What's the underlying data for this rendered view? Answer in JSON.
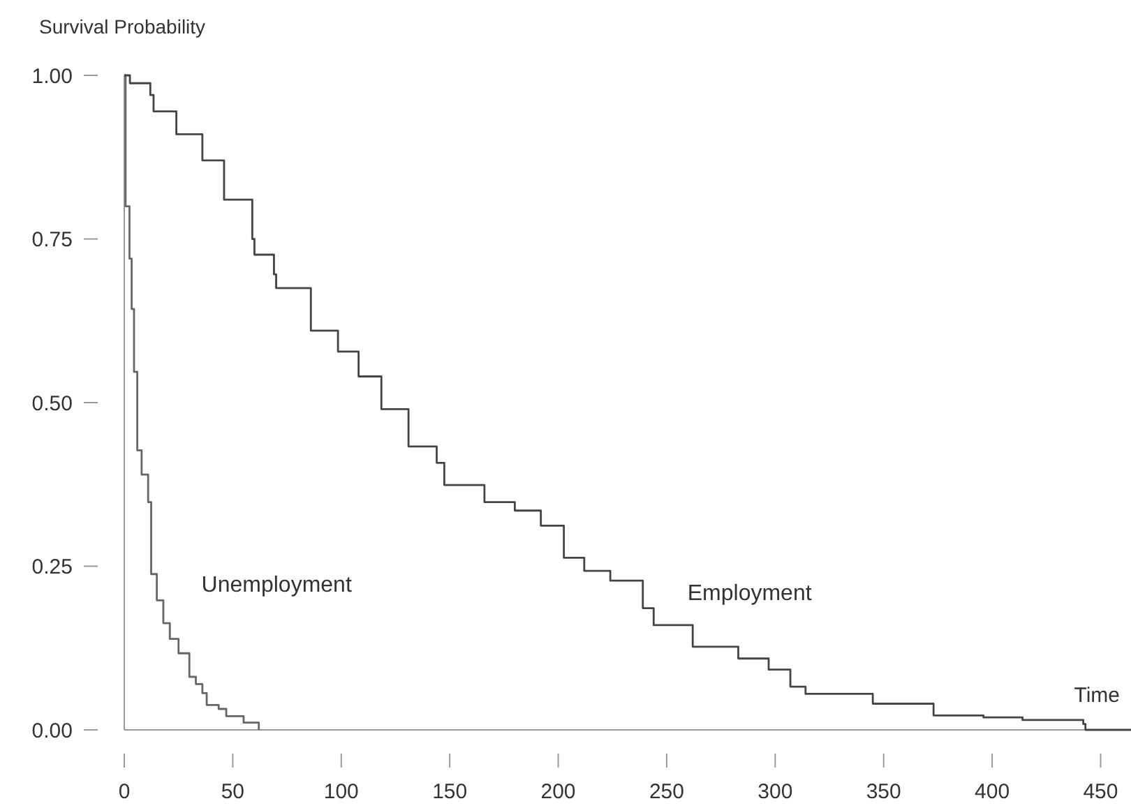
{
  "chart_data": {
    "type": "step",
    "xlabel": "Time",
    "ylabel": "Survival Probability",
    "xlim": [
      0,
      464
    ],
    "ylim": [
      0,
      1
    ],
    "xticks": [
      0,
      50,
      100,
      150,
      200,
      250,
      300,
      350,
      400,
      450
    ],
    "yticks": [
      {
        "value": 0,
        "label": "0.00"
      },
      {
        "value": 0.25,
        "label": "0.25"
      },
      {
        "value": 0.5,
        "label": "0.50"
      },
      {
        "value": 0.75,
        "label": "0.75"
      },
      {
        "value": 1,
        "label": "1.00"
      }
    ],
    "grid": false,
    "series": [
      {
        "name": "Unemployment",
        "color": "#666666",
        "x": [
          0,
          0.6,
          2.4,
          3.4,
          4.5,
          6,
          8,
          11,
          12.4,
          15,
          18,
          21,
          25,
          30,
          33,
          36,
          38,
          43.5,
          47,
          55,
          62
        ],
        "values": [
          1,
          0.8,
          0.72,
          0.643,
          0.547,
          0.427,
          0.39,
          0.348,
          0.238,
          0.198,
          0.163,
          0.139,
          0.117,
          0.081,
          0.07,
          0.056,
          0.038,
          0.032,
          0.021,
          0.011,
          0
        ]
      },
      {
        "name": "Employment",
        "color": "#444444",
        "x": [
          0,
          2.6,
          12,
          13.5,
          24,
          36,
          46,
          59,
          60,
          69,
          70,
          86,
          98.5,
          108,
          118.5,
          131,
          144,
          147.5,
          166,
          180,
          192,
          202.6,
          212,
          224,
          239,
          244,
          262,
          283,
          297,
          307,
          314,
          345,
          373,
          396,
          414,
          442,
          443,
          464
        ],
        "values": [
          1,
          0.988,
          0.97,
          0.945,
          0.91,
          0.87,
          0.81,
          0.75,
          0.726,
          0.696,
          0.675,
          0.61,
          0.578,
          0.54,
          0.49,
          0.433,
          0.408,
          0.374,
          0.348,
          0.335,
          0.312,
          0.263,
          0.243,
          0.228,
          0.186,
          0.16,
          0.127,
          0.109,
          0.092,
          0.066,
          0.055,
          0.04,
          0.022,
          0.019,
          0.015,
          0.009,
          0,
          0
        ]
      }
    ]
  }
}
